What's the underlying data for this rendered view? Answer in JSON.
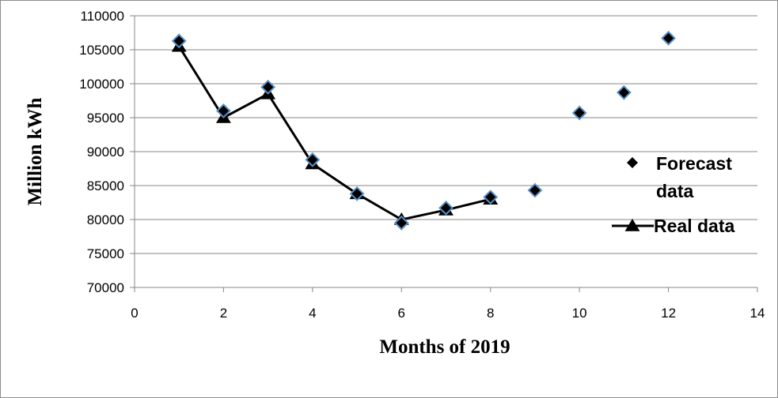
{
  "chart_data": {
    "type": "scatter",
    "title": "",
    "xlabel": "Months of 2019",
    "ylabel": "Million kWh",
    "xlim": [
      0,
      14
    ],
    "ylim": [
      70000,
      110000
    ],
    "x_ticks": [
      "0",
      "2",
      "4",
      "6",
      "8",
      "10",
      "12",
      "14"
    ],
    "y_ticks": [
      "70000",
      "75000",
      "80000",
      "85000",
      "90000",
      "95000",
      "100000",
      "105000",
      "110000"
    ],
    "grid": "horizontal",
    "legend_position": "right",
    "series": [
      {
        "name": "Forecast data",
        "marker": "diamond",
        "line": false,
        "color": "#000000",
        "edge_color": "#5b8fc7",
        "points": [
          {
            "x": 1,
            "y": 106300
          },
          {
            "x": 2,
            "y": 96000
          },
          {
            "x": 3,
            "y": 99500
          },
          {
            "x": 4,
            "y": 88800
          },
          {
            "x": 5,
            "y": 83800
          },
          {
            "x": 6,
            "y": 79500
          },
          {
            "x": 7,
            "y": 81700
          },
          {
            "x": 8,
            "y": 83300
          },
          {
            "x": 9,
            "y": 84300
          },
          {
            "x": 10,
            "y": 95700
          },
          {
            "x": 11,
            "y": 98700
          },
          {
            "x": 12,
            "y": 106700
          }
        ]
      },
      {
        "name": "Real data",
        "marker": "triangle",
        "line": true,
        "color": "#000000",
        "points": [
          {
            "x": 1,
            "y": 105500
          },
          {
            "x": 2,
            "y": 95000
          },
          {
            "x": 3,
            "y": 98500
          },
          {
            "x": 4,
            "y": 88200
          },
          {
            "x": 5,
            "y": 83800
          },
          {
            "x": 6,
            "y": 80000
          },
          {
            "x": 7,
            "y": 81400
          },
          {
            "x": 8,
            "y": 83000
          }
        ]
      }
    ],
    "legend": {
      "forecast_line1": "Forecast",
      "forecast_line2": "data",
      "real": "Real data"
    }
  }
}
